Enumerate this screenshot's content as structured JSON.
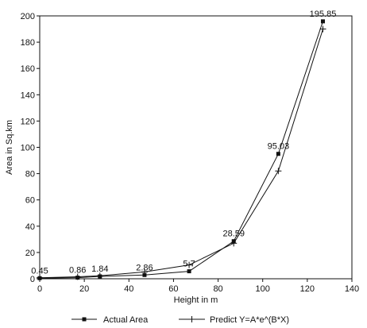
{
  "chart_data": {
    "type": "line",
    "title": "",
    "xlabel": "Height in m",
    "ylabel": "Area in Sq.km",
    "xlim": [
      0,
      140
    ],
    "ylim": [
      0,
      200
    ],
    "xticks": [
      0,
      20,
      40,
      60,
      80,
      100,
      120,
      140
    ],
    "yticks": [
      0,
      20,
      40,
      60,
      80,
      100,
      120,
      140,
      160,
      180,
      200
    ],
    "grid": false,
    "legend_position": "bottom",
    "series": [
      {
        "name": "Actual Area",
        "marker": "square",
        "x": [
          0,
          17,
          27,
          47,
          67,
          87,
          107,
          127
        ],
        "y": [
          0.45,
          0.86,
          1.84,
          2.86,
          5.7,
          28.59,
          95.03,
          195.85
        ],
        "labels": [
          "0.45",
          "0.86",
          "1.84",
          "2.86",
          "5.7",
          "28.59",
          "95.03",
          "195.85"
        ]
      },
      {
        "name": "Predict Y=A*e^(B*X)",
        "marker": "plus",
        "x": [
          0,
          17,
          27,
          47,
          67,
          87,
          107,
          127
        ],
        "y": [
          0.8,
          1.5,
          2.3,
          5.2,
          10.5,
          27.0,
          82.0,
          190.0
        ]
      }
    ]
  }
}
